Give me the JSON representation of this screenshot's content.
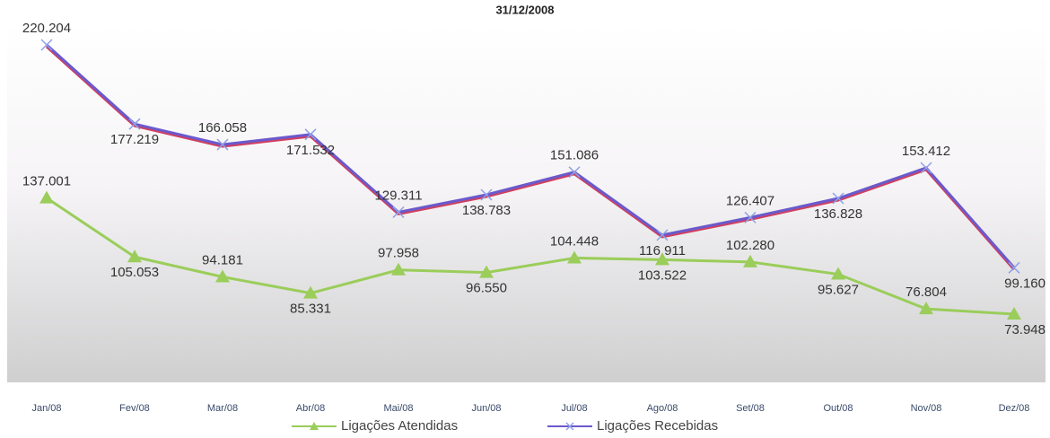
{
  "chart_data": {
    "type": "line",
    "title": "31/12/2008",
    "categories": [
      "Jan/08",
      "Fev/08",
      "Mar/08",
      "Abr/08",
      "Mai/08",
      "Jun/08",
      "Jul/08",
      "Ago/08",
      "Set/08",
      "Out/08",
      "Nov/08",
      "Dez/08"
    ],
    "series": [
      {
        "name": "Ligações Recebidas",
        "color": "#6a5acd",
        "marker": "x",
        "values": [
          220204,
          177219,
          166058,
          171532,
          129311,
          138783,
          151086,
          116911,
          126407,
          136828,
          153412,
          99160
        ],
        "value_labels": [
          "220.204",
          "177.219",
          "166.058",
          "171.532",
          "129.311",
          "138.783",
          "151.086",
          "116.911",
          "126.407",
          "136.828",
          "153.412",
          "99.160"
        ]
      },
      {
        "name": "Ligações Atendidas",
        "color": "#9acd5a",
        "marker": "triangle",
        "values": [
          137001,
          105053,
          94181,
          85331,
          97958,
          96550,
          104448,
          103522,
          102280,
          95627,
          76804,
          73948
        ],
        "value_labels": [
          "137.001",
          "105.053",
          "94.181",
          "85.331",
          "97.958",
          "96.550",
          "104.448",
          "103.522",
          "102.280",
          "95.627",
          "76.804",
          "73.948"
        ]
      }
    ]
  }
}
